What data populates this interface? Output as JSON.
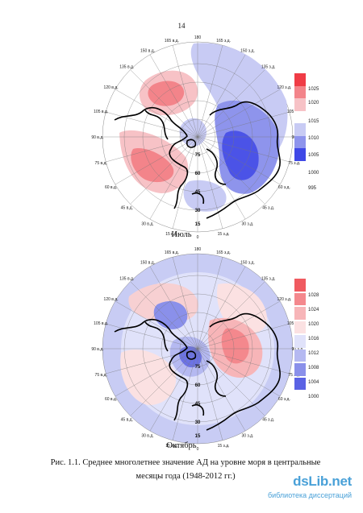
{
  "page_number": "14",
  "maps": [
    {
      "id": "july",
      "label": "Июль",
      "legend_values": [
        "1025",
        "1020",
        "1015",
        "1010",
        "1005",
        "1000",
        "995"
      ],
      "legend_colors": [
        "#f03c46",
        "#f3848a",
        "#f7c2c6",
        "#ffffff",
        "#c8cbf4",
        "#8e94ec",
        "#3f48e6"
      ]
    },
    {
      "id": "oct",
      "label": "Октябрь",
      "legend_values": [
        "1028",
        "1024",
        "1020",
        "1016",
        "1012",
        "1008",
        "1004",
        "1000"
      ],
      "legend_colors": [
        "#f05a60",
        "#f4888d",
        "#f7b5b8",
        "#fbe1e2",
        "#e0e2fa",
        "#b5b9f1",
        "#8a90ea",
        "#5a62e4"
      ]
    }
  ],
  "longitude_labels": [
    "180",
    "165 в.д.",
    "150 в.д.",
    "135 в.д.",
    "120 в.д.",
    "105 в.д.",
    "90 в.д.",
    "75 в.д.",
    "60 в.д.",
    "45 в.д.",
    "30 в.д.",
    "15 в.д.",
    "0",
    "15 з.д.",
    "30 з.д.",
    "45 з.д.",
    "60 з.д.",
    "75 з.д.",
    "90 з.д.",
    "105 з.д.",
    "120 з.д.",
    "135 з.д.",
    "150 з.д.",
    "165 з.д."
  ],
  "latitude_labels": [
    "75",
    "60",
    "45",
    "30",
    "15"
  ],
  "caption": {
    "line1": "Рис. 1.1. Среднее многолетнее значение АД на уровне моря в центральные",
    "line2": "месяцы года (1948-2012 гг.)"
  },
  "watermark": {
    "logo": "dsLib.net",
    "subtitle": "библиотека диссертаций"
  }
}
